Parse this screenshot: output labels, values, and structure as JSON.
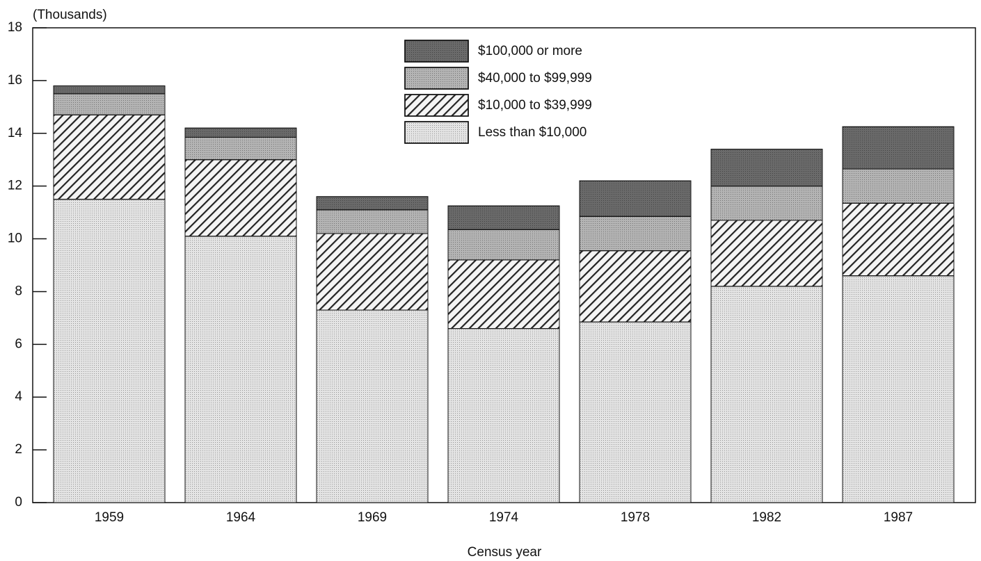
{
  "chart_data": {
    "type": "stacked_bar",
    "y_unit_label": "(Thousands)",
    "x_axis_label": "Census year",
    "categories": [
      "1959",
      "1964",
      "1969",
      "1974",
      "1978",
      "1982",
      "1987"
    ],
    "series": [
      {
        "name": "Less than $10,000",
        "color": "#e4e4e4",
        "values": [
          11.5,
          10.1,
          7.3,
          6.6,
          6.85,
          8.2,
          8.6
        ]
      },
      {
        "name": "$10,000 to $39,999",
        "color": "#f4f4f4",
        "values": [
          3.2,
          2.9,
          2.9,
          2.6,
          2.7,
          2.5,
          2.75
        ]
      },
      {
        "name": "$40,000 to $99,999",
        "color": "#b4b4b4",
        "values": [
          0.8,
          0.85,
          0.9,
          1.15,
          1.3,
          1.3,
          1.3
        ]
      },
      {
        "name": "$100,000 or more",
        "color": "#6a6a6a",
        "values": [
          0.3,
          0.35,
          0.5,
          0.9,
          1.35,
          1.4,
          1.6
        ]
      }
    ],
    "ylim": [
      0,
      18
    ],
    "yticks": [
      0,
      2,
      4,
      6,
      8,
      10,
      12,
      14,
      16,
      18
    ],
    "legend": "top-center"
  }
}
